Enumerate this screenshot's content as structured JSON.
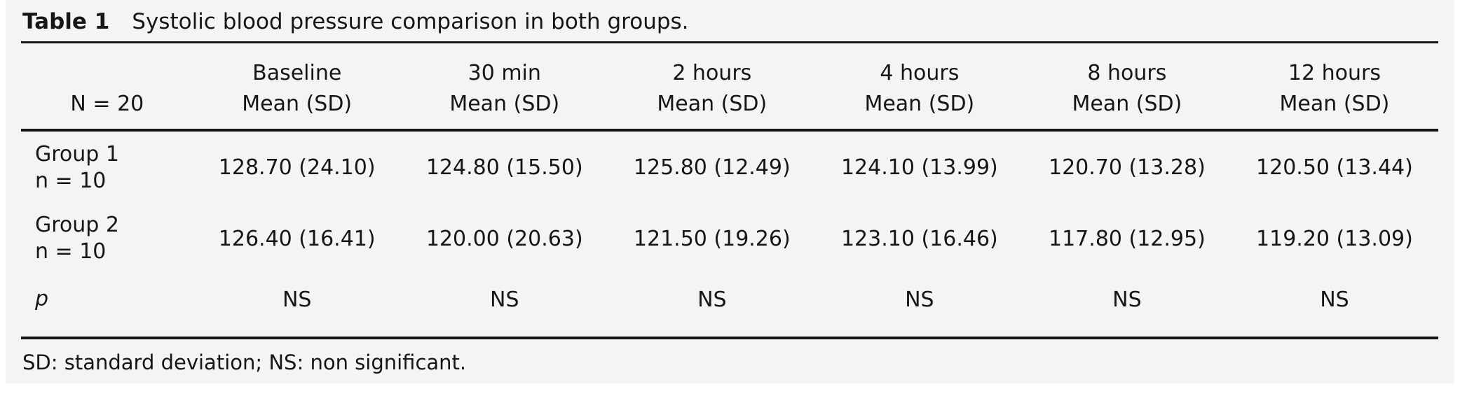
{
  "caption": {
    "label": "Table 1",
    "text": "Systolic blood pressure comparison in both groups."
  },
  "table": {
    "stub_header": "N = 20",
    "columns": [
      {
        "time": "Baseline",
        "sub": "Mean (SD)"
      },
      {
        "time": "30 min",
        "sub": "Mean (SD)"
      },
      {
        "time": "2 hours",
        "sub": "Mean (SD)"
      },
      {
        "time": "4 hours",
        "sub": "Mean (SD)"
      },
      {
        "time": "8 hours",
        "sub": "Mean (SD)"
      },
      {
        "time": "12 hours",
        "sub": "Mean (SD)"
      }
    ],
    "rows": [
      {
        "group": "Group 1",
        "n": "n = 10",
        "values": [
          "128.70 (24.10)",
          "124.80 (15.50)",
          "125.80 (12.49)",
          "124.10 (13.99)",
          "120.70 (13.28)",
          "120.50 (13.44)"
        ]
      },
      {
        "group": "Group 2",
        "n": "n = 10",
        "values": [
          "126.40 (16.41)",
          "120.00 (20.63)",
          "121.50 (19.26)",
          "123.10 (16.46)",
          "117.80 (12.95)",
          "119.20 (13.09)"
        ]
      }
    ],
    "p_row": {
      "label": "p",
      "values": [
        "NS",
        "NS",
        "NS",
        "NS",
        "NS",
        "NS"
      ]
    }
  },
  "footnote": "SD: standard deviation; NS: non significant.",
  "chart_data": {
    "type": "table",
    "title": "Table 1 Systolic blood pressure comparison in both groups.",
    "categories": [
      "Baseline",
      "30 min",
      "2 hours",
      "4 hours",
      "8 hours",
      "12 hours"
    ],
    "series": [
      {
        "name": "Group 1 (n = 10) mean",
        "values": [
          128.7,
          124.8,
          125.8,
          124.1,
          120.7,
          120.5
        ]
      },
      {
        "name": "Group 1 (n = 10) sd",
        "values": [
          24.1,
          15.5,
          12.49,
          13.99,
          13.28,
          13.44
        ]
      },
      {
        "name": "Group 2 (n = 10) mean",
        "values": [
          126.4,
          120.0,
          121.5,
          123.1,
          117.8,
          119.2
        ]
      },
      {
        "name": "Group 2 (n = 10) sd",
        "values": [
          16.41,
          20.63,
          19.26,
          16.46,
          12.95,
          13.09
        ]
      },
      {
        "name": "p",
        "values": [
          "NS",
          "NS",
          "NS",
          "NS",
          "NS",
          "NS"
        ]
      }
    ]
  },
  "colors": {
    "panel_background": "#f4f4f3",
    "page_background": "#ffffff",
    "text": "#161616",
    "rule": "#161616"
  }
}
